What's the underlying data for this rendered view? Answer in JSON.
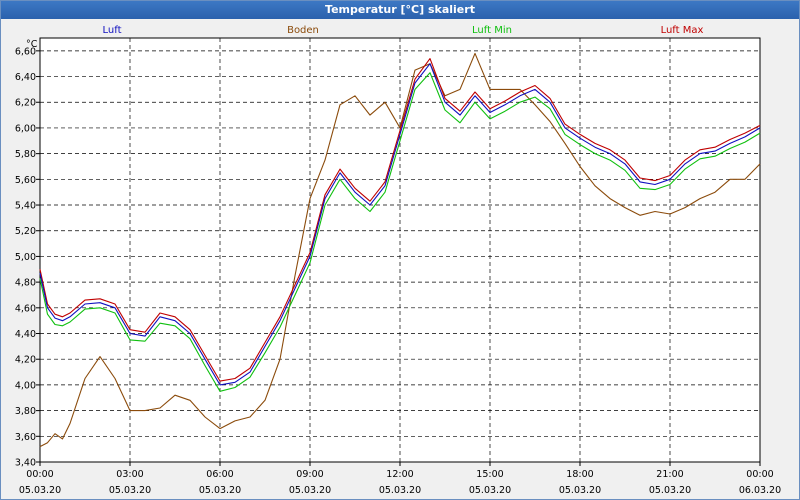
{
  "window": {
    "title": "Temperatur [°C] skaliert"
  },
  "chart_data": {
    "type": "line",
    "title": "Temperatur [°C] skaliert",
    "ylabel": "°C",
    "ylim": [
      3.4,
      6.7
    ],
    "xlim": [
      0,
      24
    ],
    "y_ticks": [
      3.4,
      3.6,
      3.8,
      4.0,
      4.2,
      4.4,
      4.6,
      4.8,
      5.0,
      5.2,
      5.4,
      5.6,
      5.8,
      6.0,
      6.2,
      6.4,
      6.6
    ],
    "y_tick_labels": [
      "3,40",
      "3,60",
      "3,80",
      "4,00",
      "4,20",
      "4,40",
      "4,60",
      "4,80",
      "5,00",
      "5,20",
      "5,40",
      "5,60",
      "5,80",
      "6,00",
      "6,20",
      "6,40",
      "6,60"
    ],
    "x_ticks": [
      {
        "hour": 0,
        "time": "00:00",
        "date": "05.03.20"
      },
      {
        "hour": 3,
        "time": "03:00",
        "date": "05.03.20"
      },
      {
        "hour": 6,
        "time": "06:00",
        "date": "05.03.20"
      },
      {
        "hour": 9,
        "time": "09:00",
        "date": "05.03.20"
      },
      {
        "hour": 12,
        "time": "12:00",
        "date": "05.03.20"
      },
      {
        "hour": 15,
        "time": "15:00",
        "date": "05.03.20"
      },
      {
        "hour": 18,
        "time": "18:00",
        "date": "05.03.20"
      },
      {
        "hour": 21,
        "time": "21:00",
        "date": "05.03.20"
      },
      {
        "hour": 24,
        "time": "00:00",
        "date": "06.03.20"
      }
    ],
    "grid": true,
    "series": [
      {
        "name": "Luft",
        "color": "#1010c0",
        "x": [
          0,
          0.25,
          0.5,
          0.75,
          1,
          1.5,
          2,
          2.5,
          3,
          3.5,
          4,
          4.5,
          5,
          5.5,
          6,
          6.5,
          7,
          7.5,
          8,
          8.5,
          9,
          9.5,
          10,
          10.5,
          11,
          11.5,
          12,
          12.5,
          13,
          13.5,
          14,
          14.5,
          15,
          15.5,
          16,
          16.5,
          17,
          17.5,
          18,
          18.5,
          19,
          19.5,
          20,
          20.5,
          21,
          21.5,
          22,
          22.5,
          23,
          23.5,
          24
        ],
        "values": [
          4.87,
          4.6,
          4.52,
          4.5,
          4.53,
          4.63,
          4.64,
          4.6,
          4.4,
          4.38,
          4.53,
          4.5,
          4.4,
          4.2,
          4.0,
          4.02,
          4.1,
          4.3,
          4.5,
          4.75,
          5.0,
          5.45,
          5.65,
          5.5,
          5.4,
          5.55,
          5.95,
          6.35,
          6.5,
          6.2,
          6.1,
          6.25,
          6.12,
          6.18,
          6.25,
          6.3,
          6.2,
          6.0,
          5.92,
          5.85,
          5.8,
          5.72,
          5.58,
          5.56,
          5.6,
          5.72,
          5.8,
          5.82,
          5.88,
          5.93,
          6.0
        ]
      },
      {
        "name": "Boden",
        "color": "#8b4b0b",
        "x": [
          0,
          0.25,
          0.5,
          0.75,
          1,
          1.5,
          2,
          2.5,
          3,
          3.5,
          4,
          4.5,
          5,
          5.5,
          6,
          6.5,
          7,
          7.5,
          8,
          8.5,
          9,
          9.5,
          10,
          10.5,
          11,
          11.5,
          12,
          12.5,
          13,
          13.5,
          14,
          14.5,
          15,
          15.5,
          16,
          16.5,
          17,
          17.5,
          18,
          18.5,
          19,
          19.5,
          20,
          20.5,
          21,
          21.5,
          22,
          22.5,
          23,
          23.5,
          24
        ],
        "values": [
          3.52,
          3.55,
          3.62,
          3.58,
          3.7,
          4.05,
          4.22,
          4.05,
          3.8,
          3.8,
          3.82,
          3.92,
          3.88,
          3.75,
          3.66,
          3.72,
          3.75,
          3.88,
          4.2,
          4.85,
          5.45,
          5.75,
          6.18,
          6.25,
          6.1,
          6.2,
          6.0,
          6.45,
          6.5,
          6.25,
          6.3,
          6.58,
          6.3,
          6.3,
          6.3,
          6.18,
          6.05,
          5.88,
          5.7,
          5.55,
          5.45,
          5.38,
          5.32,
          5.35,
          5.33,
          5.38,
          5.45,
          5.5,
          5.6,
          5.6,
          5.72
        ]
      },
      {
        "name": "Luft Min",
        "color": "#10c010",
        "x": [
          0,
          0.25,
          0.5,
          0.75,
          1,
          1.5,
          2,
          2.5,
          3,
          3.5,
          4,
          4.5,
          5,
          5.5,
          6,
          6.5,
          7,
          7.5,
          8,
          8.5,
          9,
          9.5,
          10,
          10.5,
          11,
          11.5,
          12,
          12.5,
          13,
          13.5,
          14,
          14.5,
          15,
          15.5,
          16,
          16.5,
          17,
          17.5,
          18,
          18.5,
          19,
          19.5,
          20,
          20.5,
          21,
          21.5,
          22,
          22.5,
          23,
          23.5,
          24
        ],
        "values": [
          4.83,
          4.55,
          4.47,
          4.46,
          4.49,
          4.59,
          4.6,
          4.56,
          4.35,
          4.34,
          4.48,
          4.46,
          4.36,
          4.15,
          3.95,
          3.98,
          4.06,
          4.25,
          4.45,
          4.7,
          4.95,
          5.4,
          5.6,
          5.45,
          5.35,
          5.5,
          5.9,
          6.3,
          6.43,
          6.14,
          6.04,
          6.2,
          6.07,
          6.13,
          6.2,
          6.24,
          6.15,
          5.95,
          5.87,
          5.8,
          5.75,
          5.67,
          5.53,
          5.52,
          5.56,
          5.68,
          5.76,
          5.78,
          5.84,
          5.89,
          5.96
        ]
      },
      {
        "name": "Luft Max",
        "color": "#c00000",
        "x": [
          0,
          0.25,
          0.5,
          0.75,
          1,
          1.5,
          2,
          2.5,
          3,
          3.5,
          4,
          4.5,
          5,
          5.5,
          6,
          6.5,
          7,
          7.5,
          8,
          8.5,
          9,
          9.5,
          10,
          10.5,
          11,
          11.5,
          12,
          12.5,
          13,
          13.5,
          14,
          14.5,
          15,
          15.5,
          16,
          16.5,
          17,
          17.5,
          18,
          18.5,
          19,
          19.5,
          20,
          20.5,
          21,
          21.5,
          22,
          22.5,
          23,
          23.5,
          24
        ],
        "values": [
          4.9,
          4.63,
          4.55,
          4.53,
          4.56,
          4.66,
          4.67,
          4.63,
          4.43,
          4.41,
          4.56,
          4.53,
          4.43,
          4.23,
          4.03,
          4.05,
          4.13,
          4.33,
          4.53,
          4.78,
          5.03,
          5.48,
          5.68,
          5.53,
          5.43,
          5.58,
          5.98,
          6.38,
          6.54,
          6.23,
          6.13,
          6.28,
          6.15,
          6.21,
          6.28,
          6.33,
          6.23,
          6.03,
          5.95,
          5.88,
          5.83,
          5.75,
          5.61,
          5.59,
          5.63,
          5.75,
          5.83,
          5.85,
          5.91,
          5.96,
          6.02
        ]
      }
    ]
  }
}
